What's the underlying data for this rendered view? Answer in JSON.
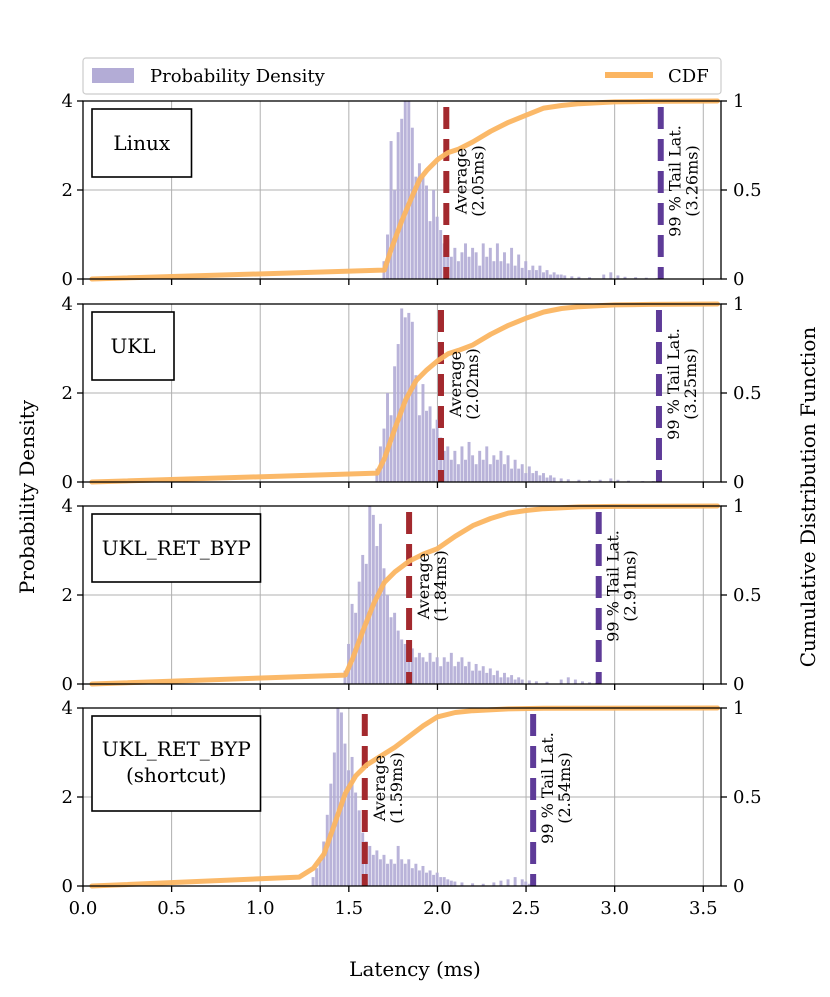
{
  "figure": {
    "xlabel": "Latency (ms)",
    "ylabel_left": "Probability Density",
    "ylabel_right": "Cumulative Distribution Function"
  },
  "legend": {
    "placement": "top",
    "hist_label": "Probability Density",
    "cdf_label": "CDF"
  },
  "colors": {
    "hist": "#b3acd6",
    "cdf": "#fbb561",
    "average": "#a3292e",
    "tail": "#5e3b98",
    "grid": "#b0b0b0"
  },
  "chart_data": [
    {
      "type": "histogram+cdf",
      "name": "Linux",
      "label_lines": [
        "Linux"
      ],
      "xlim": [
        0,
        3.6
      ],
      "ylim_left": [
        0,
        4
      ],
      "ylim_right": [
        0,
        1
      ],
      "xticks": [
        "0.0",
        "0.5",
        "1.0",
        "1.5",
        "2.0",
        "2.5",
        "3.0",
        "3.5"
      ],
      "yticks_left": [
        "0",
        "2",
        "4"
      ],
      "yticks_right": [
        "0",
        "0.5",
        "1"
      ],
      "grid": true,
      "average": {
        "value": 2.05,
        "lines": [
          "Average",
          "(2.05ms)"
        ]
      },
      "tail": {
        "value": 3.26,
        "lines": [
          "99 % Tail Lat.",
          "(3.26ms)"
        ]
      },
      "hist": [
        [
          1.7,
          0.4
        ],
        [
          1.72,
          1.0
        ],
        [
          1.74,
          3.1
        ],
        [
          1.76,
          2.0
        ],
        [
          1.78,
          3.3
        ],
        [
          1.8,
          3.6
        ],
        [
          1.82,
          4.0
        ],
        [
          1.84,
          4.0
        ],
        [
          1.86,
          3.4
        ],
        [
          1.88,
          2.3
        ],
        [
          1.9,
          2.6
        ],
        [
          1.92,
          2.3
        ],
        [
          1.94,
          2.1
        ],
        [
          1.96,
          1.3
        ],
        [
          1.98,
          2.0
        ],
        [
          2.0,
          1.4
        ],
        [
          2.02,
          1.1
        ],
        [
          2.04,
          0.8
        ],
        [
          2.06,
          0.9
        ],
        [
          2.08,
          0.5
        ],
        [
          2.1,
          0.7
        ],
        [
          2.12,
          0.4
        ],
        [
          2.14,
          0.6
        ],
        [
          2.16,
          0.8
        ],
        [
          2.18,
          0.5
        ],
        [
          2.2,
          0.7
        ],
        [
          2.22,
          0.6
        ],
        [
          2.24,
          0.3
        ],
        [
          2.26,
          0.8
        ],
        [
          2.28,
          0.5
        ],
        [
          2.3,
          0.7
        ],
        [
          2.32,
          0.4
        ],
        [
          2.34,
          0.8
        ],
        [
          2.36,
          0.4
        ],
        [
          2.38,
          0.6
        ],
        [
          2.4,
          0.35
        ],
        [
          2.42,
          0.7
        ],
        [
          2.44,
          0.3
        ],
        [
          2.46,
          0.55
        ],
        [
          2.48,
          0.25
        ],
        [
          2.5,
          0.4
        ],
        [
          2.52,
          0.2
        ],
        [
          2.54,
          0.3
        ],
        [
          2.56,
          0.2
        ],
        [
          2.58,
          0.3
        ],
        [
          2.6,
          0.15
        ],
        [
          2.62,
          0.2
        ],
        [
          2.64,
          0.1
        ],
        [
          2.66,
          0.15
        ],
        [
          2.68,
          0.1
        ],
        [
          2.7,
          0.1
        ],
        [
          2.72,
          0.08
        ],
        [
          2.76,
          0.06
        ],
        [
          2.8,
          0.05
        ],
        [
          2.86,
          0.04
        ],
        [
          2.94,
          0.1
        ],
        [
          2.98,
          0.15
        ],
        [
          3.02,
          0.08
        ],
        [
          3.06,
          0.05
        ],
        [
          3.12,
          0.04
        ],
        [
          3.18,
          0.03
        ],
        [
          3.24,
          0.02
        ]
      ],
      "cdf": [
        [
          0.05,
          0.0
        ],
        [
          1.7,
          0.05
        ],
        [
          1.74,
          0.17
        ],
        [
          1.8,
          0.33
        ],
        [
          1.86,
          0.47
        ],
        [
          1.9,
          0.56
        ],
        [
          1.94,
          0.61
        ],
        [
          2.0,
          0.67
        ],
        [
          2.06,
          0.71
        ],
        [
          2.12,
          0.73
        ],
        [
          2.2,
          0.77
        ],
        [
          2.3,
          0.83
        ],
        [
          2.4,
          0.88
        ],
        [
          2.5,
          0.92
        ],
        [
          2.6,
          0.96
        ],
        [
          2.7,
          0.975
        ],
        [
          2.8,
          0.985
        ],
        [
          3.0,
          0.995
        ],
        [
          3.2,
          0.998
        ],
        [
          3.58,
          1.0
        ]
      ]
    },
    {
      "type": "histogram+cdf",
      "name": "UKL",
      "label_lines": [
        "UKL"
      ],
      "xlim": [
        0,
        3.6
      ],
      "ylim_left": [
        0,
        4
      ],
      "ylim_right": [
        0,
        1
      ],
      "xticks": [
        "0.0",
        "0.5",
        "1.0",
        "1.5",
        "2.0",
        "2.5",
        "3.0",
        "3.5"
      ],
      "yticks_left": [
        "0",
        "2",
        "4"
      ],
      "yticks_right": [
        "0",
        "0.5",
        "1"
      ],
      "grid": true,
      "average": {
        "value": 2.02,
        "lines": [
          "Average",
          "(2.02ms)"
        ]
      },
      "tail": {
        "value": 3.25,
        "lines": [
          "99 % Tail Lat.",
          "(3.25ms)"
        ]
      },
      "hist": [
        [
          1.66,
          0.3
        ],
        [
          1.68,
          0.8
        ],
        [
          1.7,
          1.2
        ],
        [
          1.72,
          2.0
        ],
        [
          1.74,
          1.5
        ],
        [
          1.76,
          2.6
        ],
        [
          1.78,
          3.1
        ],
        [
          1.8,
          3.9
        ],
        [
          1.82,
          3.7
        ],
        [
          1.84,
          3.8
        ],
        [
          1.86,
          3.6
        ],
        [
          1.88,
          2.4
        ],
        [
          1.9,
          1.5
        ],
        [
          1.92,
          2.2
        ],
        [
          1.94,
          1.6
        ],
        [
          1.96,
          1.7
        ],
        [
          1.98,
          1.2
        ],
        [
          2.0,
          1.4
        ],
        [
          2.02,
          1.0
        ],
        [
          2.04,
          0.7
        ],
        [
          2.06,
          0.8
        ],
        [
          2.08,
          0.5
        ],
        [
          2.1,
          0.7
        ],
        [
          2.12,
          0.4
        ],
        [
          2.14,
          0.8
        ],
        [
          2.16,
          0.5
        ],
        [
          2.18,
          0.9
        ],
        [
          2.2,
          0.6
        ],
        [
          2.22,
          0.4
        ],
        [
          2.24,
          0.7
        ],
        [
          2.26,
          0.5
        ],
        [
          2.28,
          0.8
        ],
        [
          2.3,
          0.4
        ],
        [
          2.32,
          0.6
        ],
        [
          2.34,
          0.5
        ],
        [
          2.36,
          0.7
        ],
        [
          2.38,
          0.4
        ],
        [
          2.4,
          0.6
        ],
        [
          2.42,
          0.3
        ],
        [
          2.44,
          0.5
        ],
        [
          2.46,
          0.3
        ],
        [
          2.48,
          0.4
        ],
        [
          2.5,
          0.2
        ],
        [
          2.52,
          0.35
        ],
        [
          2.54,
          0.2
        ],
        [
          2.56,
          0.25
        ],
        [
          2.58,
          0.15
        ],
        [
          2.6,
          0.2
        ],
        [
          2.62,
          0.1
        ],
        [
          2.64,
          0.15
        ],
        [
          2.66,
          0.1
        ],
        [
          2.7,
          0.08
        ],
        [
          2.74,
          0.06
        ],
        [
          2.8,
          0.05
        ],
        [
          2.86,
          0.04
        ],
        [
          2.92,
          0.05
        ],
        [
          2.98,
          0.08
        ],
        [
          3.02,
          0.05
        ],
        [
          3.08,
          0.03
        ],
        [
          3.16,
          0.02
        ],
        [
          3.22,
          0.02
        ]
      ],
      "cdf": [
        [
          0.05,
          0.0
        ],
        [
          1.66,
          0.05
        ],
        [
          1.7,
          0.13
        ],
        [
          1.76,
          0.3
        ],
        [
          1.82,
          0.46
        ],
        [
          1.88,
          0.57
        ],
        [
          1.94,
          0.63
        ],
        [
          2.0,
          0.68
        ],
        [
          2.06,
          0.72
        ],
        [
          2.12,
          0.74
        ],
        [
          2.2,
          0.77
        ],
        [
          2.3,
          0.83
        ],
        [
          2.4,
          0.88
        ],
        [
          2.5,
          0.92
        ],
        [
          2.6,
          0.955
        ],
        [
          2.7,
          0.975
        ],
        [
          2.8,
          0.985
        ],
        [
          3.0,
          0.995
        ],
        [
          3.2,
          0.998
        ],
        [
          3.58,
          1.0
        ]
      ]
    },
    {
      "type": "histogram+cdf",
      "name": "UKL_RET_BYP",
      "label_lines": [
        "UKL_RET_BYP"
      ],
      "xlim": [
        0,
        3.6
      ],
      "ylim_left": [
        0,
        4
      ],
      "ylim_right": [
        0,
        1
      ],
      "xticks": [
        "0.0",
        "0.5",
        "1.0",
        "1.5",
        "2.0",
        "2.5",
        "3.0",
        "3.5"
      ],
      "yticks_left": [
        "0",
        "2",
        "4"
      ],
      "yticks_right": [
        "0",
        "0.5",
        "1"
      ],
      "grid": true,
      "average": {
        "value": 1.84,
        "lines": [
          "Average",
          "(1.84ms)"
        ]
      },
      "tail": {
        "value": 2.91,
        "lines": [
          "99 % Tail Lat.",
          "(2.91ms)"
        ]
      },
      "hist": [
        [
          1.48,
          0.3
        ],
        [
          1.5,
          0.9
        ],
        [
          1.52,
          1.8
        ],
        [
          1.54,
          1.6
        ],
        [
          1.56,
          2.3
        ],
        [
          1.58,
          2.9
        ],
        [
          1.6,
          2.7
        ],
        [
          1.62,
          4.0
        ],
        [
          1.64,
          3.8
        ],
        [
          1.66,
          3.1
        ],
        [
          1.68,
          3.6
        ],
        [
          1.7,
          2.6
        ],
        [
          1.72,
          2.0
        ],
        [
          1.74,
          1.5
        ],
        [
          1.76,
          1.6
        ],
        [
          1.78,
          1.2
        ],
        [
          1.8,
          1.0
        ],
        [
          1.82,
          0.9
        ],
        [
          1.84,
          0.7
        ],
        [
          1.86,
          0.8
        ],
        [
          1.88,
          0.6
        ],
        [
          1.9,
          0.7
        ],
        [
          1.92,
          0.6
        ],
        [
          1.94,
          0.5
        ],
        [
          1.96,
          0.7
        ],
        [
          1.98,
          0.5
        ],
        [
          2.0,
          0.6
        ],
        [
          2.02,
          0.4
        ],
        [
          2.04,
          0.6
        ],
        [
          2.06,
          0.5
        ],
        [
          2.08,
          0.7
        ],
        [
          2.1,
          0.4
        ],
        [
          2.12,
          0.5
        ],
        [
          2.14,
          0.6
        ],
        [
          2.16,
          0.4
        ],
        [
          2.18,
          0.5
        ],
        [
          2.2,
          0.3
        ],
        [
          2.22,
          0.45
        ],
        [
          2.24,
          0.3
        ],
        [
          2.26,
          0.4
        ],
        [
          2.28,
          0.25
        ],
        [
          2.3,
          0.35
        ],
        [
          2.32,
          0.2
        ],
        [
          2.34,
          0.3
        ],
        [
          2.36,
          0.15
        ],
        [
          2.38,
          0.25
        ],
        [
          2.4,
          0.15
        ],
        [
          2.42,
          0.2
        ],
        [
          2.44,
          0.1
        ],
        [
          2.46,
          0.15
        ],
        [
          2.48,
          0.1
        ],
        [
          2.52,
          0.08
        ],
        [
          2.56,
          0.06
        ],
        [
          2.62,
          0.05
        ],
        [
          2.7,
          0.1
        ],
        [
          2.74,
          0.15
        ],
        [
          2.78,
          0.1
        ],
        [
          2.82,
          0.06
        ],
        [
          2.86,
          0.04
        ],
        [
          2.9,
          0.03
        ]
      ],
      "cdf": [
        [
          0.05,
          0.0
        ],
        [
          1.48,
          0.05
        ],
        [
          1.52,
          0.14
        ],
        [
          1.58,
          0.3
        ],
        [
          1.64,
          0.45
        ],
        [
          1.7,
          0.57
        ],
        [
          1.76,
          0.63
        ],
        [
          1.84,
          0.69
        ],
        [
          1.92,
          0.73
        ],
        [
          2.0,
          0.76
        ],
        [
          2.1,
          0.83
        ],
        [
          2.2,
          0.89
        ],
        [
          2.3,
          0.93
        ],
        [
          2.4,
          0.96
        ],
        [
          2.5,
          0.975
        ],
        [
          2.6,
          0.985
        ],
        [
          2.8,
          0.995
        ],
        [
          3.0,
          0.998
        ],
        [
          3.58,
          1.0
        ]
      ]
    },
    {
      "type": "histogram+cdf",
      "name": "UKL_RET_BYP (shortcut)",
      "label_lines": [
        "UKL_RET_BYP",
        "(shortcut)"
      ],
      "xlim": [
        0,
        3.6
      ],
      "ylim_left": [
        0,
        4
      ],
      "ylim_right": [
        0,
        1
      ],
      "xticks": [
        "0.0",
        "0.5",
        "1.0",
        "1.5",
        "2.0",
        "2.5",
        "3.0",
        "3.5"
      ],
      "yticks_left": [
        "0",
        "2",
        "4"
      ],
      "yticks_right": [
        "0",
        "0.5",
        "1"
      ],
      "grid": true,
      "average": {
        "value": 1.59,
        "lines": [
          "Average",
          "(1.59ms)"
        ]
      },
      "tail": {
        "value": 2.54,
        "lines": [
          "99 % Tail Lat.",
          "(2.54ms)"
        ]
      },
      "hist": [
        [
          1.3,
          0.2
        ],
        [
          1.32,
          0.4
        ],
        [
          1.34,
          0.6
        ],
        [
          1.36,
          1.0
        ],
        [
          1.38,
          1.6
        ],
        [
          1.4,
          2.3
        ],
        [
          1.42,
          3.0
        ],
        [
          1.44,
          4.0
        ],
        [
          1.46,
          3.9
        ],
        [
          1.48,
          3.2
        ],
        [
          1.5,
          2.6
        ],
        [
          1.52,
          2.9
        ],
        [
          1.54,
          2.1
        ],
        [
          1.56,
          1.7
        ],
        [
          1.58,
          1.2
        ],
        [
          1.6,
          1.0
        ],
        [
          1.62,
          0.9
        ],
        [
          1.64,
          0.7
        ],
        [
          1.66,
          0.8
        ],
        [
          1.68,
          0.6
        ],
        [
          1.7,
          0.7
        ],
        [
          1.72,
          0.5
        ],
        [
          1.74,
          0.6
        ],
        [
          1.76,
          0.5
        ],
        [
          1.78,
          0.9
        ],
        [
          1.8,
          0.6
        ],
        [
          1.82,
          0.5
        ],
        [
          1.84,
          0.6
        ],
        [
          1.86,
          0.4
        ],
        [
          1.88,
          0.5
        ],
        [
          1.9,
          0.35
        ],
        [
          1.92,
          0.45
        ],
        [
          1.94,
          0.3
        ],
        [
          1.96,
          0.35
        ],
        [
          1.98,
          0.25
        ],
        [
          2.0,
          0.3
        ],
        [
          2.02,
          0.2
        ],
        [
          2.04,
          0.2
        ],
        [
          2.06,
          0.15
        ],
        [
          2.08,
          0.12
        ],
        [
          2.1,
          0.1
        ],
        [
          2.14,
          0.08
        ],
        [
          2.2,
          0.06
        ],
        [
          2.26,
          0.05
        ],
        [
          2.32,
          0.08
        ],
        [
          2.36,
          0.12
        ],
        [
          2.4,
          0.15
        ],
        [
          2.44,
          0.2
        ],
        [
          2.48,
          0.15
        ],
        [
          2.5,
          0.1
        ],
        [
          2.52,
          0.05
        ]
      ],
      "cdf": [
        [
          0.05,
          0.0
        ],
        [
          1.22,
          0.05
        ],
        [
          1.3,
          0.1
        ],
        [
          1.36,
          0.18
        ],
        [
          1.42,
          0.35
        ],
        [
          1.48,
          0.52
        ],
        [
          1.54,
          0.62
        ],
        [
          1.6,
          0.68
        ],
        [
          1.68,
          0.73
        ],
        [
          1.76,
          0.78
        ],
        [
          1.84,
          0.84
        ],
        [
          1.92,
          0.9
        ],
        [
          2.0,
          0.95
        ],
        [
          2.1,
          0.975
        ],
        [
          2.2,
          0.985
        ],
        [
          2.4,
          0.995
        ],
        [
          2.6,
          0.999
        ],
        [
          3.58,
          1.0
        ]
      ]
    }
  ]
}
